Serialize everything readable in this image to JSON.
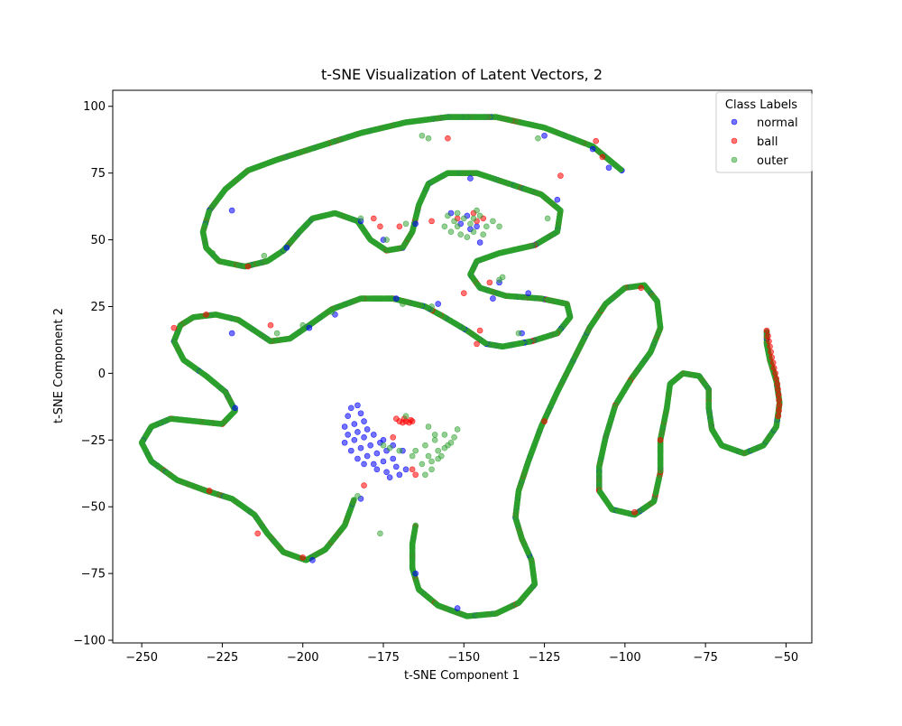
{
  "chart_data": {
    "type": "scatter",
    "title": "t-SNE Visualization of Latent Vectors, 2",
    "xlabel": "t-SNE Component 1",
    "ylabel": "t-SNE Component 2",
    "xlim": [
      -259,
      -42
    ],
    "ylim": [
      -101,
      106
    ],
    "xticks": [
      -250,
      -225,
      -200,
      -175,
      -150,
      -125,
      -100,
      -75,
      -50
    ],
    "yticks": [
      -100,
      -75,
      -50,
      -25,
      0,
      25,
      50,
      75,
      100
    ],
    "grid": false,
    "legend": {
      "title": "Class Labels",
      "position": "top-right"
    },
    "marker_size": 3,
    "series": [
      {
        "name": "normal",
        "color": "#0000ff",
        "alpha": 0.55,
        "points": [
          [
            -185,
            -13
          ],
          [
            -183,
            -12
          ],
          [
            -186,
            -16
          ],
          [
            -182,
            -15
          ],
          [
            -187,
            -20
          ],
          [
            -184,
            -19
          ],
          [
            -181,
            -18
          ],
          [
            -186,
            -23
          ],
          [
            -183,
            -22
          ],
          [
            -180,
            -21
          ],
          [
            -187,
            -26
          ],
          [
            -184,
            -25
          ],
          [
            -181,
            -24
          ],
          [
            -178,
            -23
          ],
          [
            -185,
            -29
          ],
          [
            -182,
            -28
          ],
          [
            -179,
            -27
          ],
          [
            -176,
            -26
          ],
          [
            -183,
            -32
          ],
          [
            -180,
            -31
          ],
          [
            -177,
            -30
          ],
          [
            -174,
            -29
          ],
          [
            -181,
            -34
          ],
          [
            -178,
            -34
          ],
          [
            -175,
            -33
          ],
          [
            -172,
            -32
          ],
          [
            -177,
            -36
          ],
          [
            -174,
            -37
          ],
          [
            -171,
            -35
          ],
          [
            -168,
            -36
          ],
          [
            -175,
            -25
          ],
          [
            -172,
            -27
          ],
          [
            -169,
            -29
          ],
          [
            -173,
            -39
          ],
          [
            -170,
            -38
          ],
          [
            -222,
            61
          ],
          [
            -205,
            47
          ],
          [
            -182,
            57
          ],
          [
            -175,
            50
          ],
          [
            -165,
            56
          ],
          [
            -148,
            73
          ],
          [
            -148,
            54
          ],
          [
            -141,
            28
          ],
          [
            -139,
            34
          ],
          [
            -165,
            -75
          ],
          [
            -152,
            -88
          ],
          [
            -221,
            -13
          ],
          [
            -125,
            89
          ],
          [
            -105,
            77
          ],
          [
            -110,
            84
          ],
          [
            -222,
            15
          ],
          [
            -197,
            -70
          ],
          [
            -182,
            -47
          ],
          [
            -121,
            65
          ],
          [
            -130,
            30
          ],
          [
            -154,
            60
          ],
          [
            -151,
            56
          ],
          [
            -149,
            59
          ],
          [
            -146,
            55
          ],
          [
            -145,
            49
          ],
          [
            -171,
            28
          ],
          [
            -198,
            17
          ],
          [
            -190,
            22
          ],
          [
            -158,
            26
          ],
          [
            -132,
            15
          ]
        ]
      },
      {
        "name": "ball",
        "color": "#ff0000",
        "alpha": 0.55,
        "points": [
          [
            -170,
            -18
          ],
          [
            -169,
            -18.5
          ],
          [
            -168,
            -18
          ],
          [
            -167,
            -18.5
          ],
          [
            -166,
            -18
          ],
          [
            -168.5,
            -17
          ],
          [
            -166.5,
            -17.5
          ],
          [
            -171,
            -17
          ],
          [
            -172,
            -24
          ],
          [
            -165,
            -38
          ],
          [
            -56,
            16
          ],
          [
            -55.6,
            14
          ],
          [
            -55.3,
            12
          ],
          [
            -55,
            10
          ],
          [
            -54.7,
            8
          ],
          [
            -54.4,
            6
          ],
          [
            -54,
            4
          ],
          [
            -53.7,
            2
          ],
          [
            -53.3,
            0
          ],
          [
            -53,
            -2
          ],
          [
            -52.7,
            -4
          ],
          [
            -52.5,
            -6
          ],
          [
            -52.3,
            -8
          ],
          [
            -52.2,
            -10
          ],
          [
            -52.1,
            -12
          ],
          [
            -52.2,
            -14
          ],
          [
            -52.4,
            -16
          ],
          [
            -210,
            18
          ],
          [
            -178,
            58
          ],
          [
            -176,
            55
          ],
          [
            -170,
            55
          ],
          [
            -160,
            57
          ],
          [
            -146,
            57
          ],
          [
            -155,
            88
          ],
          [
            -142,
            34
          ],
          [
            -145,
            16
          ],
          [
            -146,
            11
          ],
          [
            -125,
            -18
          ],
          [
            -107,
            81
          ],
          [
            -109,
            87
          ],
          [
            -95,
            32
          ],
          [
            -97,
            -52
          ],
          [
            -120,
            74
          ],
          [
            -89,
            -25
          ],
          [
            -200,
            -69
          ],
          [
            -214,
            -60
          ],
          [
            -229,
            -44
          ],
          [
            -230,
            22
          ],
          [
            -240,
            17
          ],
          [
            -217,
            40
          ],
          [
            -181,
            -42
          ],
          [
            -166,
            -36
          ],
          [
            -152,
            58
          ],
          [
            -147,
            60
          ],
          [
            -144,
            58
          ],
          [
            -150,
            30
          ]
        ]
      },
      {
        "name": "outer",
        "color": "#2ca02c",
        "alpha": 0.5,
        "points": [
          [
            -165,
            -29
          ],
          [
            -162,
            -27
          ],
          [
            -159,
            -25
          ],
          [
            -156,
            -23
          ],
          [
            -161,
            -31
          ],
          [
            -158,
            -29
          ],
          [
            -155,
            -27
          ],
          [
            -163,
            -34
          ],
          [
            -160,
            -33
          ],
          [
            -157,
            -31
          ],
          [
            -154,
            -26
          ],
          [
            -152,
            -21
          ],
          [
            -153,
            -24
          ],
          [
            -156,
            -28
          ],
          [
            -160,
            -36
          ],
          [
            -162,
            -38
          ],
          [
            -159,
            -23
          ],
          [
            -161,
            -20
          ],
          [
            -166,
            -31
          ],
          [
            -168,
            -16
          ],
          [
            -175,
            -27
          ],
          [
            -173,
            -28
          ],
          [
            -170,
            -29
          ],
          [
            -158,
            -32
          ],
          [
            -155,
            59
          ],
          [
            -152,
            55
          ],
          [
            -148,
            56
          ],
          [
            -145,
            59
          ],
          [
            -143,
            55
          ],
          [
            -150,
            58
          ],
          [
            -147,
            53
          ],
          [
            -154,
            53
          ],
          [
            -146,
            61
          ],
          [
            -152,
            60
          ],
          [
            -141,
            57
          ],
          [
            -139,
            55
          ],
          [
            -149,
            51
          ],
          [
            -144,
            52
          ],
          [
            -156,
            55
          ],
          [
            -153,
            57
          ],
          [
            -151,
            52
          ],
          [
            -147,
            58
          ],
          [
            -161,
            88
          ],
          [
            -163,
            89
          ],
          [
            -127,
            88
          ],
          [
            -228,
            45
          ],
          [
            -212,
            44
          ],
          [
            -182,
            58
          ],
          [
            -174,
            50
          ],
          [
            -168,
            56
          ],
          [
            -191,
            23
          ],
          [
            -208,
            15
          ],
          [
            -200,
            18
          ],
          [
            -169,
            26
          ],
          [
            -160,
            25
          ],
          [
            -139,
            35
          ],
          [
            -138,
            36
          ],
          [
            -133,
            15
          ],
          [
            -124,
            58
          ],
          [
            -183,
            -46
          ],
          [
            -176,
            -60
          ]
        ]
      }
    ],
    "curves": [
      [
        [
          -101,
          76
        ],
        [
          -110,
          85
        ],
        [
          -125,
          92
        ],
        [
          -140,
          96
        ],
        [
          -155,
          96
        ],
        [
          -168,
          94
        ],
        [
          -182,
          90
        ],
        [
          -195,
          85
        ],
        [
          -208,
          80
        ],
        [
          -217,
          76
        ],
        [
          -224,
          69
        ],
        [
          -229,
          61
        ],
        [
          -231,
          53
        ],
        [
          -230,
          47
        ],
        [
          -226,
          42
        ],
        [
          -218,
          40
        ],
        [
          -211,
          42
        ],
        [
          -206,
          46
        ],
        [
          -201,
          53
        ],
        [
          -197,
          58
        ],
        [
          -190,
          60
        ],
        [
          -183,
          57
        ],
        [
          -179,
          50
        ],
        [
          -174,
          46
        ],
        [
          -169,
          47
        ],
        [
          -166,
          53
        ],
        [
          -164,
          63
        ],
        [
          -161,
          71
        ],
        [
          -155,
          75
        ],
        [
          -146,
          75
        ],
        [
          -136,
          71
        ],
        [
          -126,
          67
        ],
        [
          -120,
          61
        ],
        [
          -121,
          53
        ],
        [
          -128,
          48
        ],
        [
          -139,
          45
        ],
        [
          -146,
          42
        ],
        [
          -148,
          37
        ],
        [
          -145,
          32
        ],
        [
          -137,
          29
        ],
        [
          -126,
          28
        ],
        [
          -118,
          26
        ],
        [
          -117,
          21
        ],
        [
          -121,
          15
        ],
        [
          -129,
          12
        ],
        [
          -138,
          10
        ],
        [
          -143,
          11
        ],
        [
          -149,
          16
        ],
        [
          -156,
          21
        ],
        [
          -162,
          25
        ],
        [
          -172,
          28
        ],
        [
          -182,
          28
        ],
        [
          -191,
          24
        ],
        [
          -198,
          18
        ],
        [
          -204,
          13
        ],
        [
          -210,
          12
        ],
        [
          -215,
          16
        ],
        [
          -220,
          20
        ],
        [
          -227,
          22
        ],
        [
          -234,
          21
        ],
        [
          -238,
          18
        ],
        [
          -240,
          12
        ],
        [
          -237,
          5
        ],
        [
          -230,
          -1
        ],
        [
          -224,
          -7
        ],
        [
          -221,
          -14
        ],
        [
          -225,
          -19
        ],
        [
          -233,
          -18
        ],
        [
          -241,
          -17
        ],
        [
          -247,
          -20
        ],
        [
          -250,
          -26
        ],
        [
          -247,
          -33
        ],
        [
          -239,
          -40
        ],
        [
          -230,
          -44
        ],
        [
          -222,
          -47
        ],
        [
          -215,
          -53
        ],
        [
          -211,
          -60
        ],
        [
          -206,
          -67
        ],
        [
          -199,
          -70
        ],
        [
          -193,
          -66
        ],
        [
          -187,
          -57
        ],
        [
          -184,
          -47
        ]
      ],
      [
        [
          -165,
          -57
        ],
        [
          -166,
          -64
        ],
        [
          -166,
          -73
        ],
        [
          -164,
          -81
        ],
        [
          -158,
          -87
        ],
        [
          -149,
          -91
        ],
        [
          -140,
          -90
        ],
        [
          -133,
          -86
        ],
        [
          -128,
          -79
        ],
        [
          -129,
          -70
        ],
        [
          -132,
          -62
        ],
        [
          -134,
          -54
        ],
        [
          -133,
          -44
        ],
        [
          -130,
          -33
        ],
        [
          -126,
          -20
        ],
        [
          -121,
          -7
        ],
        [
          -116,
          5
        ],
        [
          -111,
          17
        ],
        [
          -106,
          26
        ],
        [
          -100,
          32
        ],
        [
          -94,
          33
        ],
        [
          -90,
          27
        ],
        [
          -89,
          17
        ],
        [
          -92,
          8
        ],
        [
          -98,
          -2
        ],
        [
          -103,
          -12
        ],
        [
          -106,
          -24
        ],
        [
          -108,
          -35
        ],
        [
          -108,
          -44
        ],
        [
          -104,
          -51
        ],
        [
          -97,
          -53
        ],
        [
          -91,
          -48
        ],
        [
          -89,
          -37
        ],
        [
          -89,
          -25
        ],
        [
          -87,
          -13
        ],
        [
          -86,
          -4
        ],
        [
          -82,
          0
        ],
        [
          -77,
          -1
        ],
        [
          -74,
          -6
        ],
        [
          -74,
          -13
        ],
        [
          -73,
          -21
        ],
        [
          -70,
          -27
        ],
        [
          -63,
          -30
        ],
        [
          -57,
          -27
        ],
        [
          -53,
          -20
        ],
        [
          -52,
          -11
        ],
        [
          -53,
          -3
        ],
        [
          -55,
          5
        ],
        [
          -56,
          11
        ],
        [
          -56,
          16
        ]
      ]
    ]
  }
}
